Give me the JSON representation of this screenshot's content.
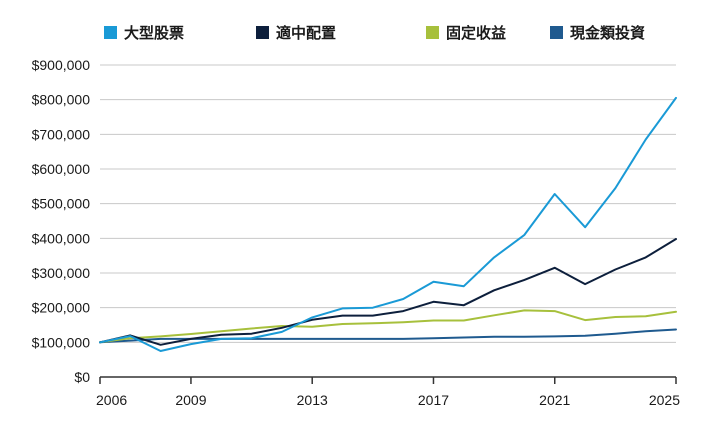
{
  "chart_data": {
    "type": "line",
    "title": "",
    "xlabel": "",
    "ylabel": "",
    "xlim": [
      2006,
      2025
    ],
    "ylim": [
      0,
      900000
    ],
    "grid": "horizontal",
    "legend_position": "top",
    "x_ticks": [
      2006,
      2009,
      2013,
      2017,
      2021,
      2025
    ],
    "x_tick_labels": [
      "2006",
      "2009",
      "2013",
      "2017",
      "2021",
      "2025"
    ],
    "y_ticks": [
      0,
      100000,
      200000,
      300000,
      400000,
      500000,
      600000,
      700000,
      800000,
      900000
    ],
    "y_tick_labels": [
      "$0",
      "$100,000",
      "$200,000",
      "$300,000",
      "$400,000",
      "$500,000",
      "$600,000",
      "$700,000",
      "$800,000",
      "$900,000"
    ],
    "x": [
      2006,
      2007,
      2008,
      2009,
      2010,
      2011,
      2012,
      2013,
      2014,
      2015,
      2016,
      2017,
      2018,
      2019,
      2020,
      2021,
      2022,
      2023,
      2024,
      2025
    ],
    "series": [
      {
        "name": "大型股票",
        "color": "#1a9ad6",
        "values": [
          100000,
          118000,
          75000,
          95000,
          110000,
          112000,
          130000,
          172000,
          198000,
          200000,
          225000,
          275000,
          262000,
          345000,
          410000,
          528000,
          432000,
          545000,
          685000,
          805000
        ]
      },
      {
        "name": "適中配置",
        "color": "#0d1f3c",
        "values": [
          100000,
          120000,
          93000,
          110000,
          122000,
          125000,
          142000,
          165000,
          177000,
          177000,
          190000,
          217000,
          207000,
          250000,
          280000,
          315000,
          268000,
          310000,
          345000,
          398000
        ]
      },
      {
        "name": "固定收益",
        "color": "#a7c03c",
        "values": [
          100000,
          112000,
          117000,
          124000,
          132000,
          140000,
          147000,
          145000,
          153000,
          155000,
          158000,
          163000,
          163000,
          178000,
          192000,
          190000,
          164000,
          173000,
          175000,
          188000
        ]
      },
      {
        "name": "現金類投資",
        "color": "#1f5a8f",
        "values": [
          100000,
          105000,
          110000,
          110000,
          110000,
          110000,
          110000,
          110000,
          110000,
          110000,
          110000,
          112000,
          114000,
          116000,
          116000,
          117000,
          119000,
          125000,
          132000,
          137000
        ]
      }
    ]
  }
}
